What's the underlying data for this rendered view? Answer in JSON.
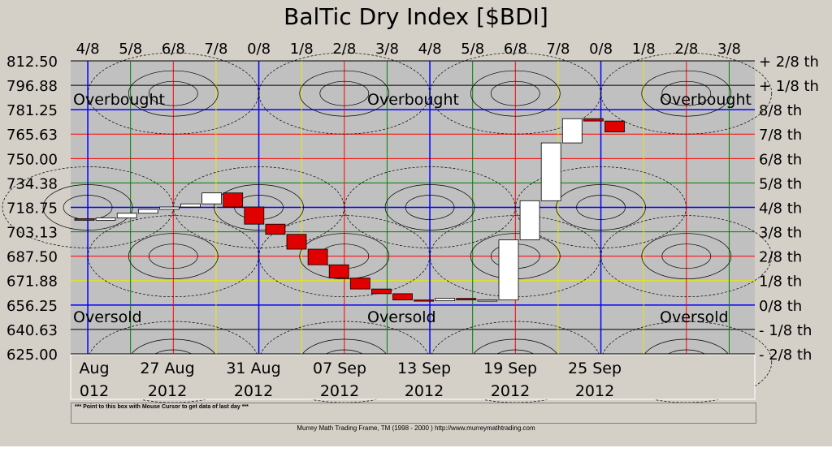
{
  "title": "BalTic Dry Index [$BDI]",
  "hint": "*** Point to this box with Mouse Cursor to get data of last day ***",
  "footer": "Murrey Math Trading Frame, TM (1998 - 2000 )  http://www.murreymathtrading.com",
  "colors": {
    "background": "#c0c0c0",
    "frame": "#d4d0c8",
    "up": "#ffffff",
    "down": "#e00000",
    "major_line": "#0000ff",
    "red_line": "#ff0000",
    "green_line": "#008000",
    "yellow_line": "#e8e800",
    "black_line": "#000000"
  },
  "chart_data": {
    "type": "candlestick",
    "title": "BalTic Dry Index [$BDI]",
    "ylim": [
      625.0,
      812.5
    ],
    "left_ticks": [
      "812.50",
      "796.88",
      "781.25",
      "765.63",
      "750.00",
      "734.38",
      "718.75",
      "703.13",
      "687.50",
      "671.88",
      "656.25",
      "640.63",
      "625.00"
    ],
    "left_values": [
      812.5,
      796.88,
      781.25,
      765.63,
      750.0,
      734.38,
      718.75,
      703.13,
      687.5,
      671.88,
      656.25,
      640.63,
      625.0
    ],
    "right_ticks": [
      "+ 2/8 th",
      "+ 1/8 th",
      "8/8 th",
      "7/8 th",
      "6/8 th",
      "5/8 th",
      "4/8 th",
      "3/8 th",
      "2/8 th",
      "1/8 th",
      "0/8 th",
      "- 1/8 th",
      "- 2/8 th"
    ],
    "top_ticks": [
      "4/8",
      "5/8",
      "6/8",
      "7/8",
      "0/8",
      "1/8",
      "2/8",
      "3/8",
      "4/8",
      "5/8",
      "6/8",
      "7/8",
      "0/8",
      "1/8",
      "2/8",
      "3/8"
    ],
    "x_labels": [
      {
        "line1": "Aug",
        "line2": "012"
      },
      {
        "line1": "27 Aug",
        "line2": "2012"
      },
      {
        "line1": "31 Aug",
        "line2": "2012"
      },
      {
        "line1": "07 Sep",
        "line2": "2012"
      },
      {
        "line1": "13 Sep",
        "line2": "2012"
      },
      {
        "line1": "19 Sep",
        "line2": "2012"
      },
      {
        "line1": "25 Sep",
        "line2": "2012"
      }
    ],
    "annotations": [
      {
        "text": "Overbought",
        "level": "upper",
        "position": "left"
      },
      {
        "text": "Overbought",
        "level": "upper",
        "position": "center"
      },
      {
        "text": "Overbought",
        "level": "upper",
        "position": "right"
      },
      {
        "text": "Oversold",
        "level": "lower",
        "position": "left"
      },
      {
        "text": "Oversold",
        "level": "lower",
        "position": "center"
      },
      {
        "text": "Oversold",
        "level": "lower",
        "position": "right"
      }
    ],
    "candles": [
      {
        "open": 711.5,
        "close": 710.5
      },
      {
        "open": 710.5,
        "close": 712.0
      },
      {
        "open": 712.0,
        "close": 715.0
      },
      {
        "open": 715.0,
        "close": 717.5
      },
      {
        "open": 717.5,
        "close": 719.0
      },
      {
        "open": 719.0,
        "close": 721.0
      },
      {
        "open": 721.0,
        "close": 728.0
      },
      {
        "open": 728.0,
        "close": 719.0
      },
      {
        "open": 719.0,
        "close": 708.0
      },
      {
        "open": 708.0,
        "close": 701.5
      },
      {
        "open": 701.5,
        "close": 692.0
      },
      {
        "open": 692.0,
        "close": 682.0
      },
      {
        "open": 682.0,
        "close": 673.5
      },
      {
        "open": 673.5,
        "close": 666.5
      },
      {
        "open": 666.5,
        "close": 663.5
      },
      {
        "open": 663.5,
        "close": 659.5
      },
      {
        "open": 659.5,
        "close": 659.0
      },
      {
        "open": 659.0,
        "close": 660.5
      },
      {
        "open": 660.5,
        "close": 659.5
      },
      {
        "open": 659.5,
        "close": 659.5
      },
      {
        "open": 659.5,
        "close": 698.0
      },
      {
        "open": 698.0,
        "close": 723.0
      },
      {
        "open": 723.0,
        "close": 760.0
      },
      {
        "open": 760.0,
        "close": 775.5
      },
      {
        "open": 775.5,
        "close": 774.0
      },
      {
        "open": 774.0,
        "close": 767.0
      }
    ]
  }
}
